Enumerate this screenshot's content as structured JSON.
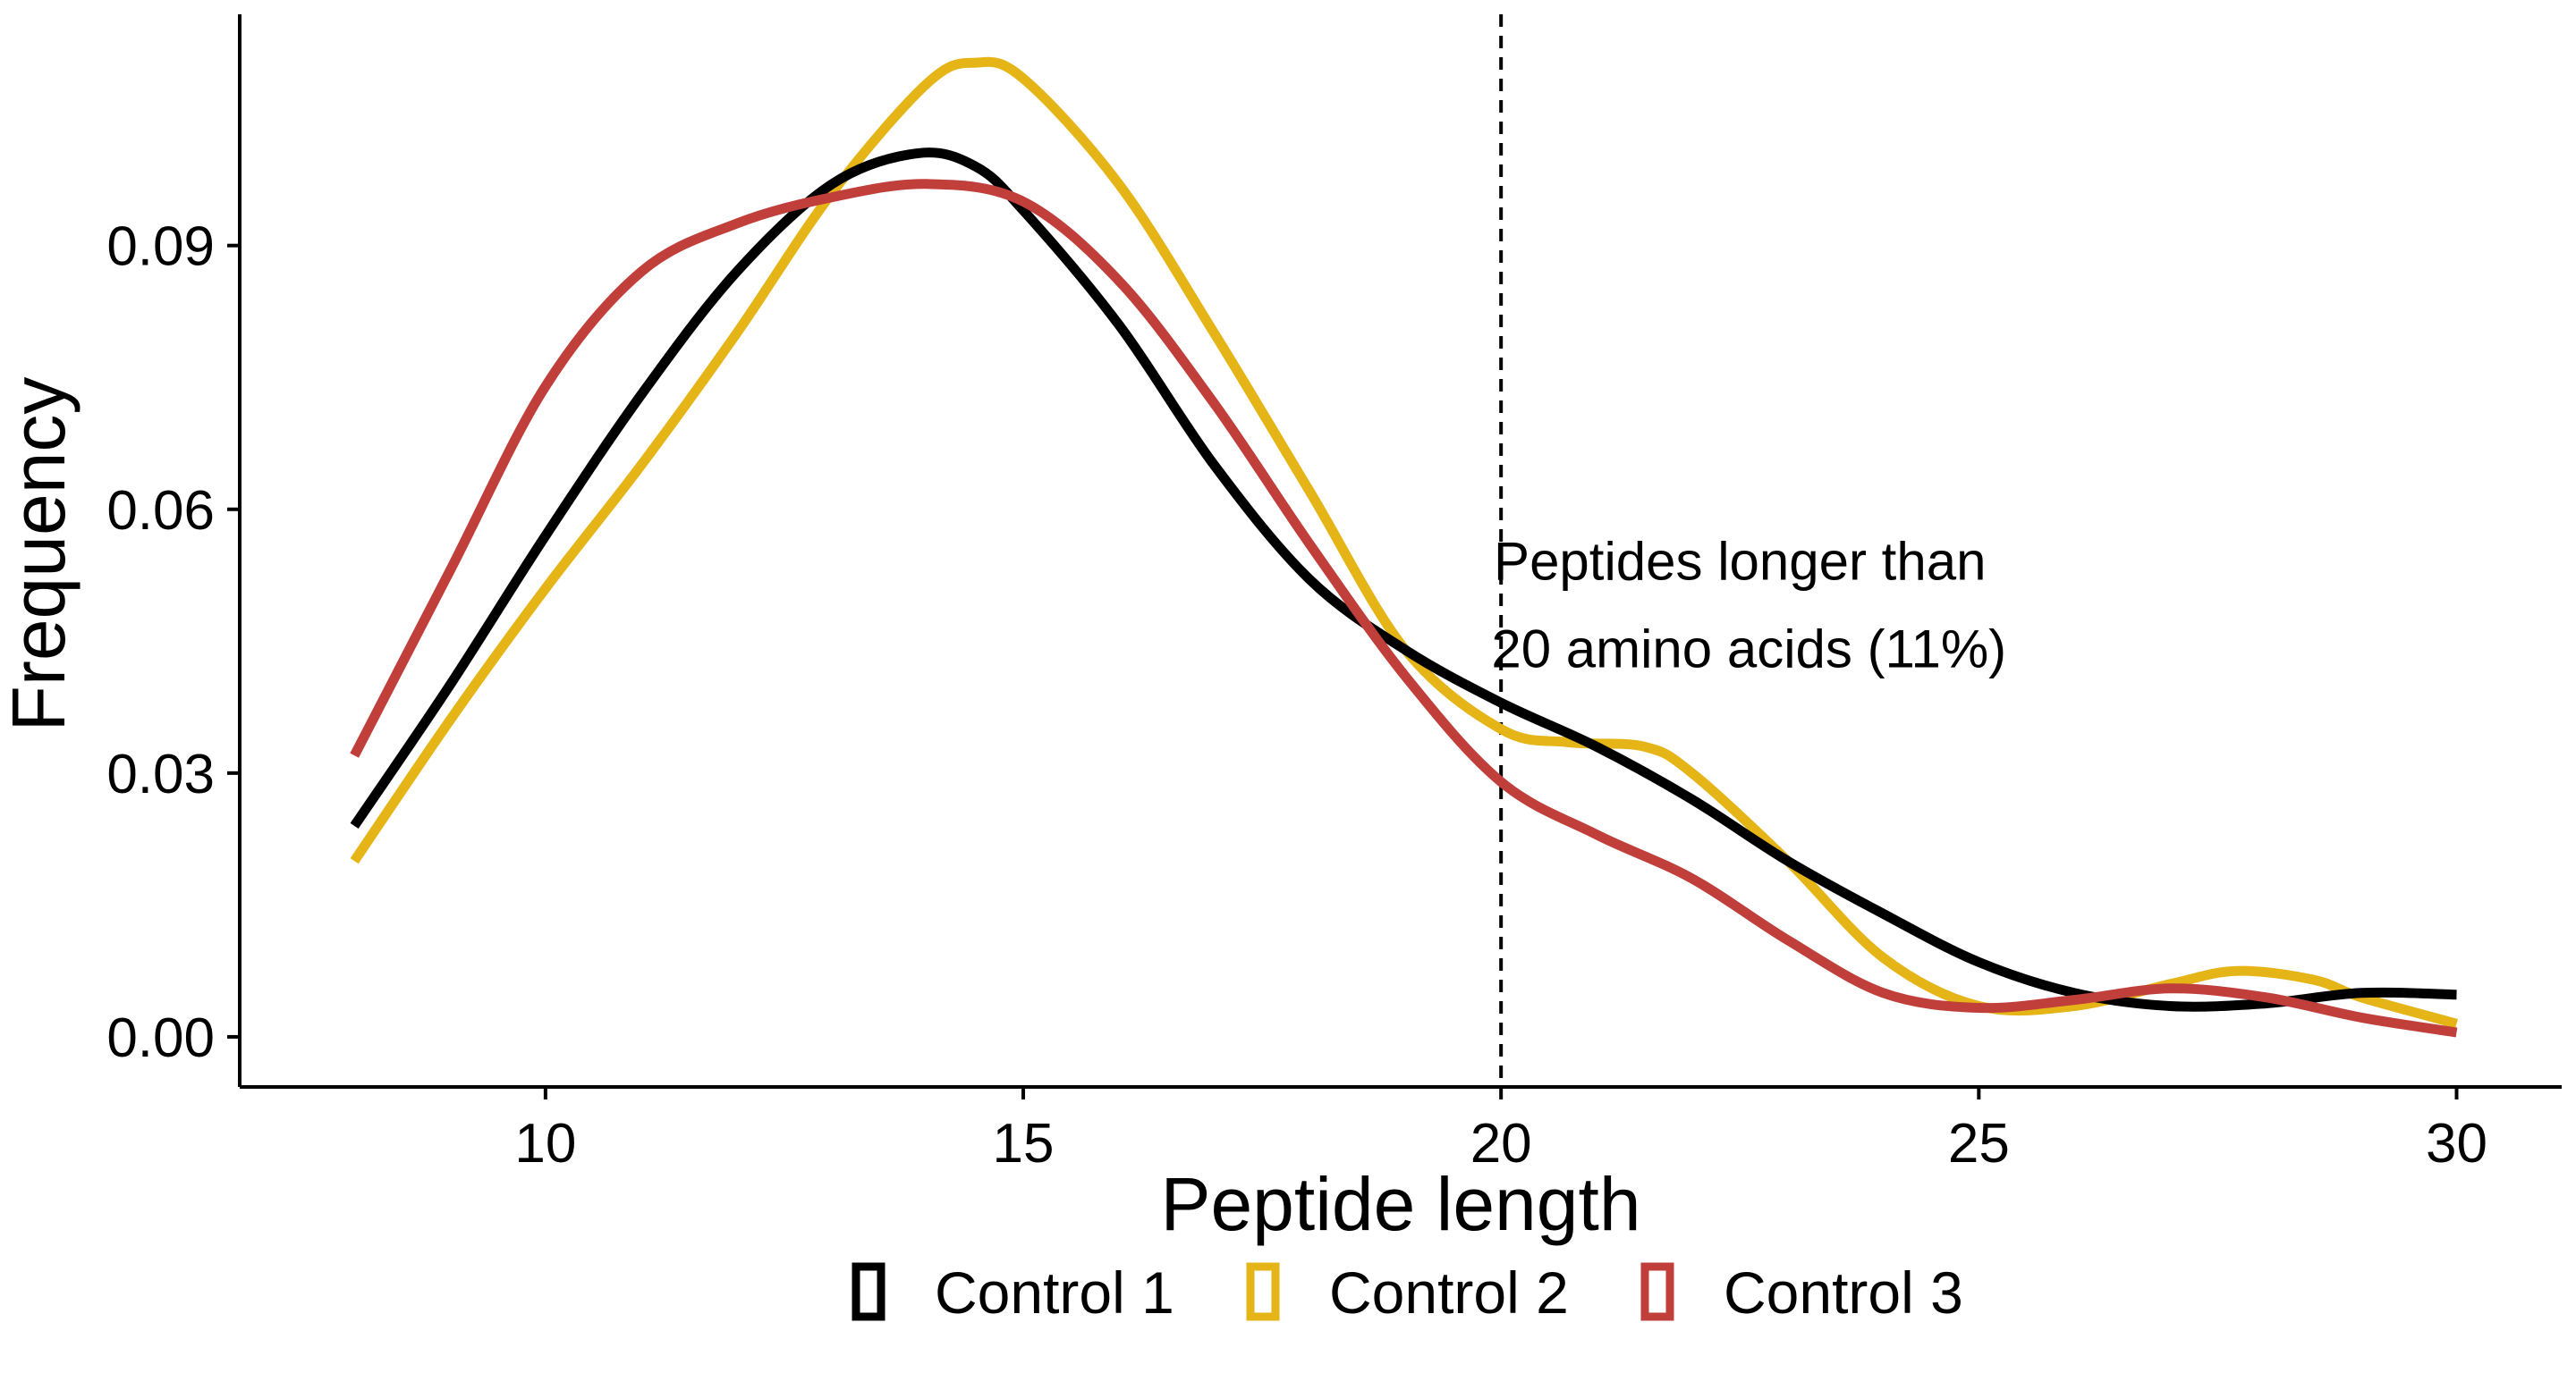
{
  "chart_data": {
    "type": "line",
    "title": "",
    "xlabel": "Peptide length",
    "ylabel": "Frequency",
    "xlim": [
      6.8,
      31.1
    ],
    "ylim": [
      -0.0057,
      0.1163
    ],
    "x_ticks": [
      10,
      15,
      20,
      25,
      30
    ],
    "x_tick_labels": [
      "10",
      "15",
      "20",
      "25",
      "30"
    ],
    "y_ticks": [
      0,
      0.03,
      0.06,
      0.09
    ],
    "y_tick_labels": [
      "0.00",
      "0.03",
      "0.06",
      "0.09"
    ],
    "grid": false,
    "legend_position": "bottom",
    "reference_line": {
      "x": 20,
      "style": "dashed"
    },
    "annotation": {
      "lines": [
        "Peptides longer than",
        "20 amino acids (11%)"
      ],
      "x": 22.5,
      "y": 0.052
    },
    "series": [
      {
        "name": "Control 1",
        "color": "#000000",
        "x": [
          8,
          9,
          10,
          11,
          12,
          13,
          13.9,
          14.5,
          15,
          16,
          17,
          18,
          19,
          20,
          21,
          22,
          23,
          24,
          25,
          26,
          27,
          28,
          29,
          30
        ],
        "y": [
          0.024,
          0.04,
          0.057,
          0.073,
          0.087,
          0.097,
          0.1005,
          0.099,
          0.094,
          0.081,
          0.065,
          0.052,
          0.044,
          0.038,
          0.033,
          0.027,
          0.02,
          0.014,
          0.0085,
          0.005,
          0.0035,
          0.0038,
          0.005,
          0.0048
        ]
      },
      {
        "name": "Control 2",
        "color": "#E5B417",
        "x": [
          8,
          9,
          10,
          11,
          12,
          13,
          14,
          14.5,
          15,
          16,
          17,
          18,
          19,
          20,
          20.7,
          21.5,
          22,
          23,
          24,
          25,
          26,
          27,
          27.7,
          28.5,
          29,
          30
        ],
        "y": [
          0.02,
          0.036,
          0.051,
          0.065,
          0.08,
          0.096,
          0.1085,
          0.1108,
          0.109,
          0.097,
          0.08,
          0.062,
          0.044,
          0.035,
          0.0335,
          0.033,
          0.03,
          0.02,
          0.009,
          0.0035,
          0.0035,
          0.006,
          0.0075,
          0.0065,
          0.0045,
          0.0015
        ]
      },
      {
        "name": "Control 3",
        "color": "#C13F3B",
        "x": [
          8,
          9,
          10,
          11,
          12,
          13,
          14,
          15,
          16,
          17,
          18,
          19,
          20,
          21,
          22,
          23,
          24,
          25,
          26,
          27,
          28,
          29,
          30
        ],
        "y": [
          0.032,
          0.053,
          0.074,
          0.087,
          0.0925,
          0.0955,
          0.097,
          0.095,
          0.086,
          0.072,
          0.056,
          0.041,
          0.029,
          0.023,
          0.018,
          0.011,
          0.005,
          0.0033,
          0.0042,
          0.0055,
          0.0045,
          0.0022,
          0.0005
        ]
      }
    ]
  }
}
